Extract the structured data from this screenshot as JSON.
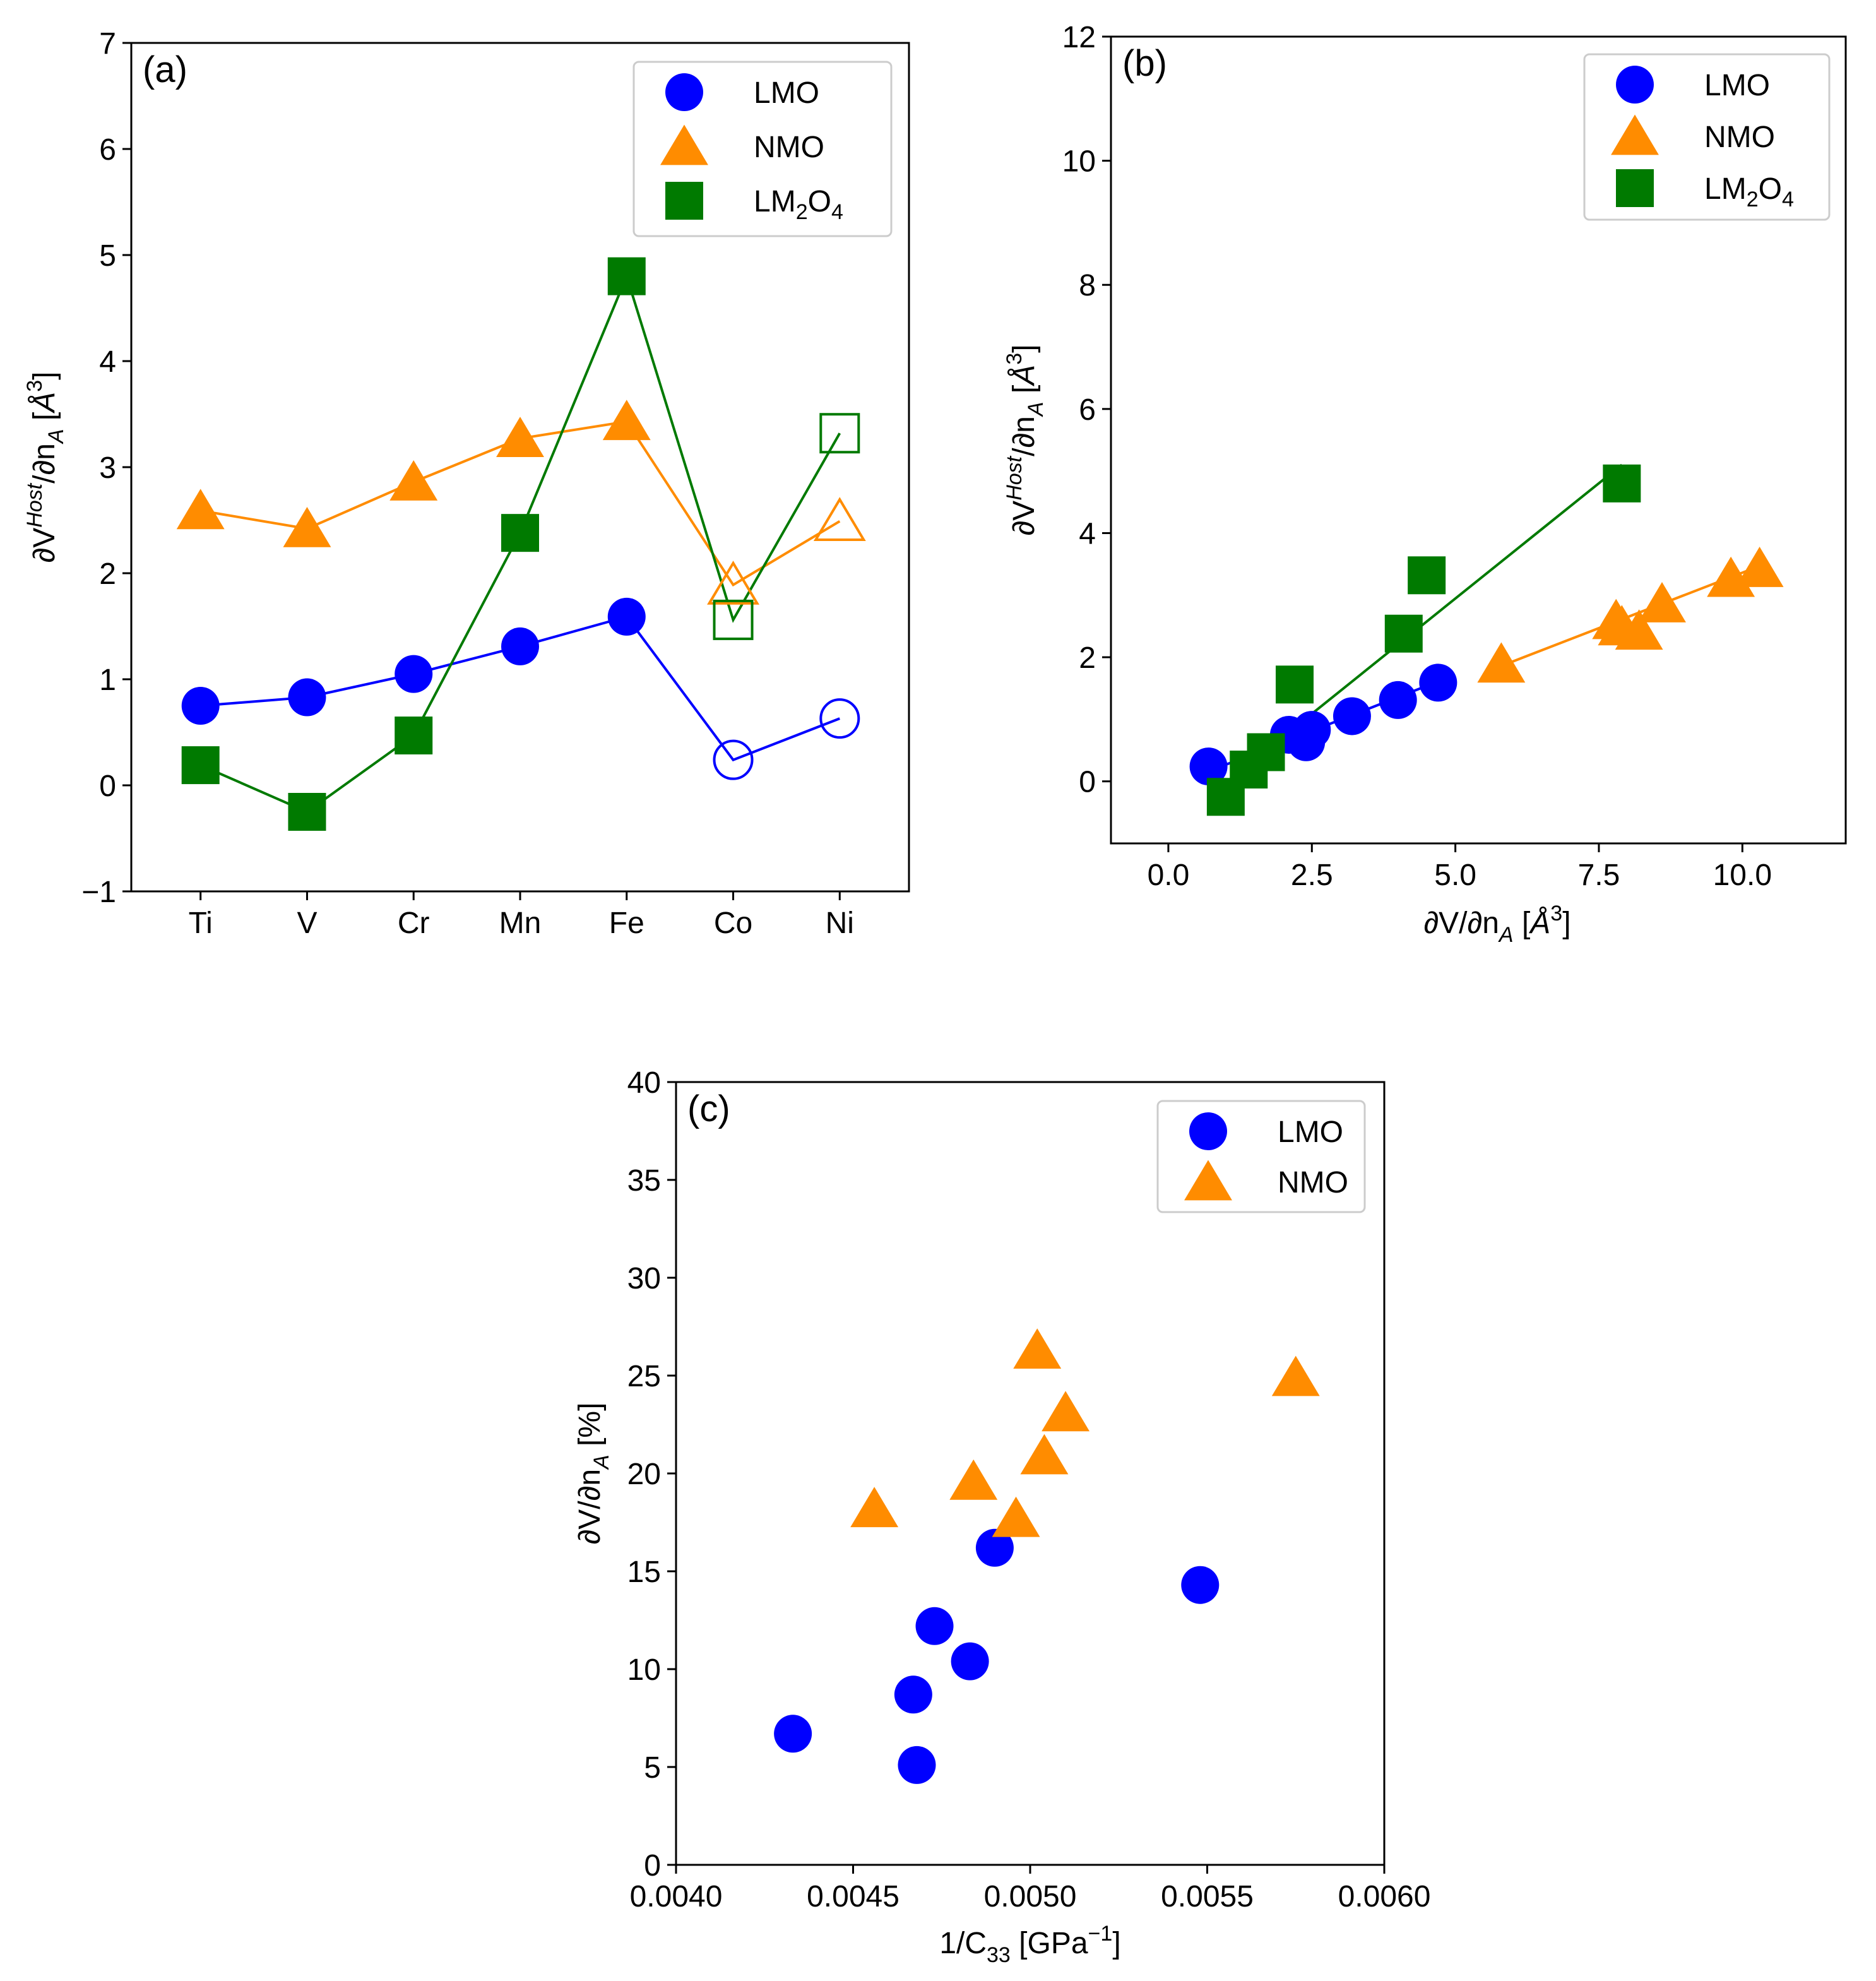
{
  "figure": {
    "labels": {
      "a": "(a)",
      "b": "(b)",
      "c": "(c)"
    }
  },
  "colors": {
    "LMO": "#0000ff",
    "NMO": "#ff8c00",
    "LM2O4": "#007a00",
    "axis": "#000000",
    "legend_border": "#cccccc"
  },
  "chart_data": [
    {
      "id": "a",
      "type": "line",
      "panel_label": "(a)",
      "xlabel": "",
      "ylabel_parts": {
        "main": "∂V",
        "sup": "Host",
        "mid": "/∂n",
        "sub": "A",
        "unit_open": " [",
        "unit": "Å",
        "unit_sup": "3",
        "unit_close": "]"
      },
      "categories": [
        "Ti",
        "V",
        "Cr",
        "Mn",
        "Fe",
        "Co",
        "Ni"
      ],
      "ylim": [
        -1,
        7
      ],
      "yticks": [
        -1,
        0,
        1,
        2,
        3,
        4,
        5,
        6,
        7
      ],
      "ytick_labels": [
        "−1",
        "0",
        "1",
        "2",
        "3",
        "4",
        "5",
        "6",
        "7"
      ],
      "legend": [
        "LMO",
        "NMO",
        "LM2O4"
      ],
      "legend_text": {
        "LMO": "LMO",
        "NMO": "NMO",
        "LM2O4_main": "LM",
        "LM2O4_sub1": "2",
        "LM2O4_mid": "O",
        "LM2O4_sub2": "4"
      },
      "legend_position": "top-right",
      "series": [
        {
          "name": "LMO",
          "marker": "circle",
          "values": [
            0.75,
            0.83,
            1.05,
            1.31,
            1.59,
            0.24,
            0.63
          ],
          "open": [
            false,
            false,
            false,
            false,
            false,
            true,
            true
          ]
        },
        {
          "name": "NMO",
          "marker": "triangle",
          "values": [
            2.59,
            2.42,
            2.86,
            3.27,
            3.43,
            1.89,
            2.49
          ],
          "open": [
            false,
            false,
            false,
            false,
            false,
            true,
            true
          ]
        },
        {
          "name": "LM2O4",
          "marker": "square",
          "values": [
            0.19,
            -0.25,
            0.47,
            2.38,
            4.8,
            1.56,
            3.32
          ],
          "open": [
            false,
            false,
            false,
            false,
            false,
            true,
            true
          ]
        }
      ]
    },
    {
      "id": "b",
      "type": "scatter",
      "panel_label": "(b)",
      "xlabel_parts": {
        "main": "∂V/∂n",
        "sub": "A",
        "unit_open": " [",
        "unit": "Å",
        "unit_sup": "3",
        "unit_close": "]"
      },
      "ylabel_parts": {
        "main": "∂V",
        "sup": "Host",
        "mid": "/∂n",
        "sub": "A",
        "unit_open": " [",
        "unit": "Å",
        "unit_sup": "3",
        "unit_close": "]"
      },
      "xlim": [
        -1.0,
        11.8
      ],
      "ylim": [
        -1,
        12
      ],
      "xticks": [
        0,
        2.5,
        5,
        7.5,
        10
      ],
      "xtick_labels": [
        "0.0",
        "2.5",
        "5.0",
        "7.5",
        "10.0"
      ],
      "yticks": [
        0,
        2,
        4,
        6,
        8,
        10,
        12
      ],
      "ytick_labels": [
        "0",
        "2",
        "4",
        "6",
        "8",
        "10",
        "12"
      ],
      "legend": [
        "LMO",
        "NMO",
        "LM2O4"
      ],
      "legend_text": {
        "LMO": "LMO",
        "NMO": "NMO",
        "LM2O4_main": "LM",
        "LM2O4_sub1": "2",
        "LM2O4_mid": "O",
        "LM2O4_sub2": "4"
      },
      "legend_position": "top-right",
      "series": [
        {
          "name": "LMO",
          "marker": "circle",
          "x": [
            0.7,
            2.1,
            2.4,
            2.5,
            3.2,
            4.0,
            4.7
          ],
          "y": [
            0.24,
            0.75,
            0.63,
            0.83,
            1.05,
            1.31,
            1.59
          ],
          "fit": [
            [
              0.7,
              0.16
            ],
            [
              4.7,
              1.61
            ]
          ]
        },
        {
          "name": "NMO",
          "marker": "triangle",
          "x": [
            5.8,
            7.8,
            7.9,
            8.2,
            8.6,
            9.8,
            10.3
          ],
          "y": [
            1.89,
            2.59,
            2.49,
            2.42,
            2.86,
            3.27,
            3.43
          ],
          "fit": [
            [
              5.8,
              1.86
            ],
            [
              10.3,
              3.47
            ]
          ]
        },
        {
          "name": "LM2O4",
          "marker": "square",
          "x": [
            1.0,
            1.4,
            1.7,
            2.2,
            4.1,
            4.5,
            7.9
          ],
          "y": [
            -0.25,
            0.19,
            0.47,
            1.56,
            2.38,
            3.32,
            4.8
          ],
          "fit": [
            [
              0.9,
              -0.1
            ],
            [
              7.9,
              5.1
            ]
          ]
        }
      ]
    },
    {
      "id": "c",
      "type": "scatter",
      "panel_label": "(c)",
      "xlabel_parts": {
        "main": "1/C",
        "sub": "33",
        "unit_open": " [",
        "unit": "GPa",
        "unit_sup": "−1",
        "unit_close": "]"
      },
      "ylabel_parts": {
        "main": "∂V/∂n",
        "sub": "A",
        "unit": " [%]"
      },
      "xlim": [
        0.004,
        0.006
      ],
      "ylim": [
        0,
        40
      ],
      "xticks": [
        0.004,
        0.0045,
        0.005,
        0.0055,
        0.006
      ],
      "xtick_labels": [
        "0.0040",
        "0.0045",
        "0.0050",
        "0.0055",
        "0.0060"
      ],
      "yticks": [
        0,
        5,
        10,
        15,
        20,
        25,
        30,
        35,
        40
      ],
      "ytick_labels": [
        "0",
        "5",
        "10",
        "15",
        "20",
        "25",
        "30",
        "35",
        "40"
      ],
      "legend": [
        "LMO",
        "NMO"
      ],
      "legend_text": {
        "LMO": "LMO",
        "NMO": "NMO"
      },
      "legend_position": "top-right",
      "series": [
        {
          "name": "LMO",
          "marker": "circle",
          "x": [
            0.00433,
            0.00467,
            0.00468,
            0.00473,
            0.00483,
            0.0049,
            0.00548
          ],
          "y": [
            6.7,
            8.7,
            5.1,
            12.2,
            10.4,
            16.2,
            14.3
          ]
        },
        {
          "name": "NMO",
          "marker": "triangle",
          "x": [
            0.00456,
            0.00484,
            0.00496,
            0.00502,
            0.00504,
            0.0051,
            0.00575
          ],
          "y": [
            18.2,
            19.6,
            17.7,
            26.3,
            20.9,
            23.1,
            24.9
          ]
        }
      ]
    }
  ]
}
